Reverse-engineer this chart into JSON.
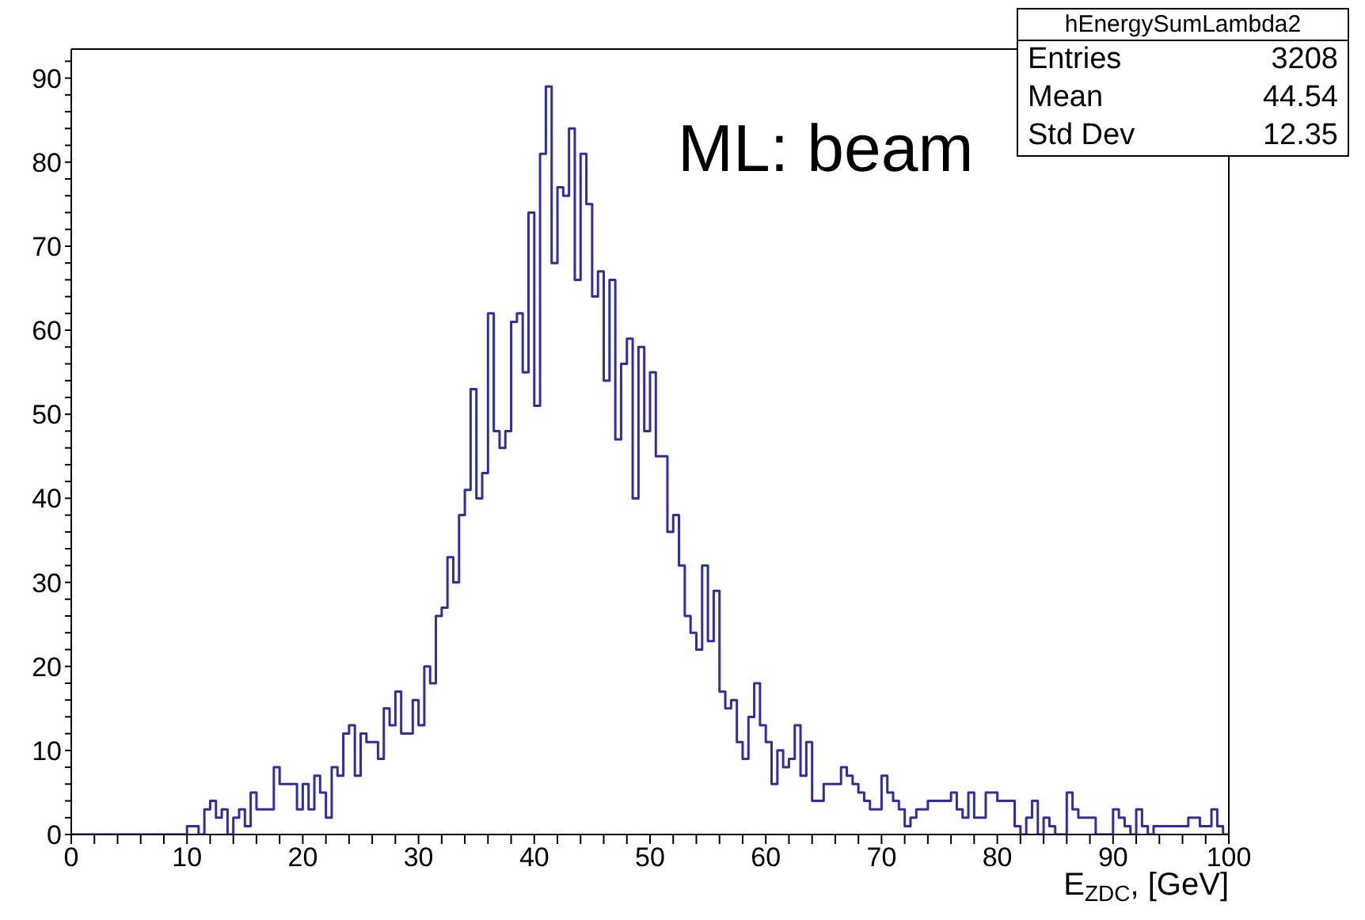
{
  "chart_data": {
    "type": "histogram",
    "xlabel": "E$_{ZDC}$, [GeV]",
    "annotations": [
      "ML: beam",
      "hEnergySumLambda2",
      "Entries",
      "3208",
      "Mean",
      "44.54",
      "Std Dev",
      "12.35"
    ],
    "bins": [
      0,
      0.5,
      1,
      1.5,
      2,
      2.5,
      3,
      3.5,
      4,
      4.5,
      5,
      5.5,
      6,
      6.5,
      7,
      7.5,
      8,
      8.5,
      9,
      9.5,
      10,
      10.5,
      11,
      11.5,
      12,
      12.5,
      13,
      13.5,
      14,
      14.5,
      15,
      15.5,
      16,
      16.5,
      17,
      17.5,
      18,
      18.5,
      19,
      19.5,
      20,
      20.5,
      21,
      21.5,
      22,
      22.5,
      23,
      23.5,
      24,
      24.5,
      25,
      25.5,
      26,
      26.5,
      27,
      27.5,
      28,
      28.5,
      29,
      29.5,
      30,
      30.5,
      31,
      31.5,
      32,
      32.5,
      33,
      33.5,
      34,
      34.5,
      35,
      35.5,
      36,
      36.5,
      37,
      37.5,
      38,
      38.5,
      39,
      39.5,
      40,
      40.5,
      41,
      41.5,
      42,
      42.5,
      43,
      43.5,
      44,
      44.5,
      45,
      45.5,
      46,
      46.5,
      47,
      47.5,
      48,
      48.5,
      49,
      49.5,
      50,
      50.5,
      51,
      51.5,
      52,
      52.5,
      53,
      53.5,
      54,
      54.5,
      55,
      55.5,
      56,
      56.5,
      57,
      57.5,
      58,
      58.5,
      59,
      59.5,
      60,
      60.5,
      61,
      61.5,
      62,
      62.5,
      63,
      63.5,
      64,
      64.5,
      65,
      65.5,
      66,
      66.5,
      67,
      67.5,
      68,
      68.5,
      69,
      69.5,
      70,
      70.5,
      71,
      71.5,
      72,
      72.5,
      73,
      73.5,
      74,
      74.5,
      75,
      75.5,
      76,
      76.5,
      77,
      77.5,
      78,
      78.5,
      79,
      79.5,
      80,
      80.5,
      81,
      81.5,
      82,
      82.5,
      83,
      83.5,
      84,
      84.5,
      85,
      85.5,
      86,
      86.5,
      87,
      87.5,
      88,
      88.5,
      89,
      89.5,
      90,
      90.5,
      91,
      91.5,
      92,
      92.5,
      93,
      93.5,
      94,
      94.5,
      95,
      95.5,
      96,
      96.5,
      97,
      97.5,
      98,
      98.5,
      99,
      99.5,
      100
    ],
    "values": [
      0,
      0,
      0,
      0,
      0,
      0,
      0,
      0,
      0,
      0,
      0,
      0,
      0,
      0,
      0,
      0,
      0,
      0,
      0,
      0,
      1,
      1,
      0,
      3,
      4,
      2,
      3,
      0,
      2,
      3,
      1,
      5,
      3,
      3,
      3,
      8,
      6,
      6,
      6,
      3,
      6,
      3,
      7,
      5,
      2,
      8,
      7,
      12,
      13,
      7,
      12,
      11,
      11,
      9,
      15,
      13,
      17,
      12,
      12,
      16,
      13,
      20,
      18,
      26,
      27,
      33,
      30,
      38,
      41,
      53,
      40,
      43,
      62,
      48,
      46,
      48,
      61,
      62,
      55,
      74,
      51,
      81,
      89,
      68,
      77,
      76,
      84,
      66,
      81,
      75,
      64,
      67,
      54,
      66,
      47,
      56,
      59,
      40,
      58,
      48,
      55,
      45,
      45,
      36,
      38,
      32,
      26,
      24,
      22,
      32,
      23,
      29,
      17,
      15,
      16,
      11,
      9,
      14,
      18,
      13,
      11,
      6,
      10,
      8,
      9,
      13,
      7,
      11,
      4,
      4,
      6,
      6,
      6,
      8,
      7,
      6,
      5,
      4,
      3,
      3,
      7,
      5,
      4,
      3,
      1,
      2,
      3,
      3,
      4,
      4,
      4,
      4,
      5,
      3,
      2,
      5,
      2,
      2,
      5,
      5,
      4,
      4,
      4,
      1,
      0,
      2,
      4,
      0,
      2,
      1,
      0,
      0,
      5,
      3,
      2,
      2,
      2,
      0,
      0,
      0,
      3,
      2,
      1,
      0,
      3,
      1,
      0,
      1,
      1,
      1,
      1,
      1,
      1,
      2,
      2,
      1,
      1,
      3,
      1,
      0
    ],
    "color": "#2e2eaa",
    "xlim": [
      0,
      100
    ],
    "xticks": [
      0,
      {
        "value": 2,
        "label": null
      },
      {
        "value": 4,
        "label": null
      },
      {
        "value": 6,
        "label": null
      },
      {
        "value": 8,
        "label": null
      },
      10,
      {
        "value": 12,
        "label": null
      },
      {
        "value": 14,
        "label": null
      },
      {
        "value": 16,
        "label": null
      },
      {
        "value": 18,
        "label": null
      },
      20,
      {
        "value": 22,
        "label": null
      },
      {
        "value": 24,
        "label": null
      },
      {
        "value": 26,
        "label": null
      },
      {
        "value": 28,
        "label": null
      },
      30,
      {
        "value": 32,
        "label": null
      },
      {
        "value": 34,
        "label": null
      },
      {
        "value": 36,
        "label": null
      },
      {
        "value": 38,
        "label": null
      },
      40,
      {
        "value": 42,
        "label": null
      },
      {
        "value": 44,
        "label": null
      },
      {
        "value": 46,
        "label": null
      },
      {
        "value": 48,
        "label": null
      },
      50,
      {
        "value": 52,
        "label": null
      },
      {
        "value": 54,
        "label": null
      },
      {
        "value": 56,
        "label": null
      },
      {
        "value": 58,
        "label": null
      },
      60,
      {
        "value": 62,
        "label": null
      },
      {
        "value": 64,
        "label": null
      },
      {
        "value": 66,
        "label": null
      },
      {
        "value": 68,
        "label": null
      },
      70,
      {
        "value": 72,
        "label": null
      },
      {
        "value": 74,
        "label": null
      },
      {
        "value": 76,
        "label": null
      },
      {
        "value": 78,
        "label": null
      },
      80,
      {
        "value": 82,
        "label": null
      },
      {
        "value": 84,
        "label": null
      },
      {
        "value": 86,
        "label": null
      },
      {
        "value": 88,
        "label": null
      },
      90,
      {
        "value": 92,
        "label": null
      },
      {
        "value": 94,
        "label": null
      },
      {
        "value": 96,
        "label": null
      },
      {
        "value": 98,
        "label": null
      },
      100
    ],
    "ylim": [
      0,
      93.45
    ],
    "yticks": [
      0,
      {
        "value": 2,
        "label": null
      },
      {
        "value": 4,
        "label": null
      },
      {
        "value": 6,
        "label": null
      },
      {
        "value": 8,
        "label": null
      },
      10,
      {
        "value": 12,
        "label": null
      },
      {
        "value": 14,
        "label": null
      },
      {
        "value": 16,
        "label": null
      },
      {
        "value": 18,
        "label": null
      },
      20,
      {
        "value": 22,
        "label": null
      },
      {
        "value": 24,
        "label": null
      },
      {
        "value": 26,
        "label": null
      },
      {
        "value": 28,
        "label": null
      },
      30,
      {
        "value": 32,
        "label": null
      },
      {
        "value": 34,
        "label": null
      },
      {
        "value": 36,
        "label": null
      },
      {
        "value": 38,
        "label": null
      },
      40,
      {
        "value": 42,
        "label": null
      },
      {
        "value": 44,
        "label": null
      },
      {
        "value": 46,
        "label": null
      },
      {
        "value": 48,
        "label": null
      },
      50,
      {
        "value": 52,
        "label": null
      },
      {
        "value": 54,
        "label": null
      },
      {
        "value": 56,
        "label": null
      },
      {
        "value": 58,
        "label": null
      },
      60,
      {
        "value": 62,
        "label": null
      },
      {
        "value": 64,
        "label": null
      },
      {
        "value": 66,
        "label": null
      },
      {
        "value": 68,
        "label": null
      },
      70,
      {
        "value": 72,
        "label": null
      },
      {
        "value": 74,
        "label": null
      },
      {
        "value": 76,
        "label": null
      },
      {
        "value": 78,
        "label": null
      },
      80,
      {
        "value": 82,
        "label": null
      },
      {
        "value": 84,
        "label": null
      },
      {
        "value": 86,
        "label": null
      },
      {
        "value": 88,
        "label": null
      },
      90,
      {
        "value": 92,
        "label": null
      }
    ]
  }
}
